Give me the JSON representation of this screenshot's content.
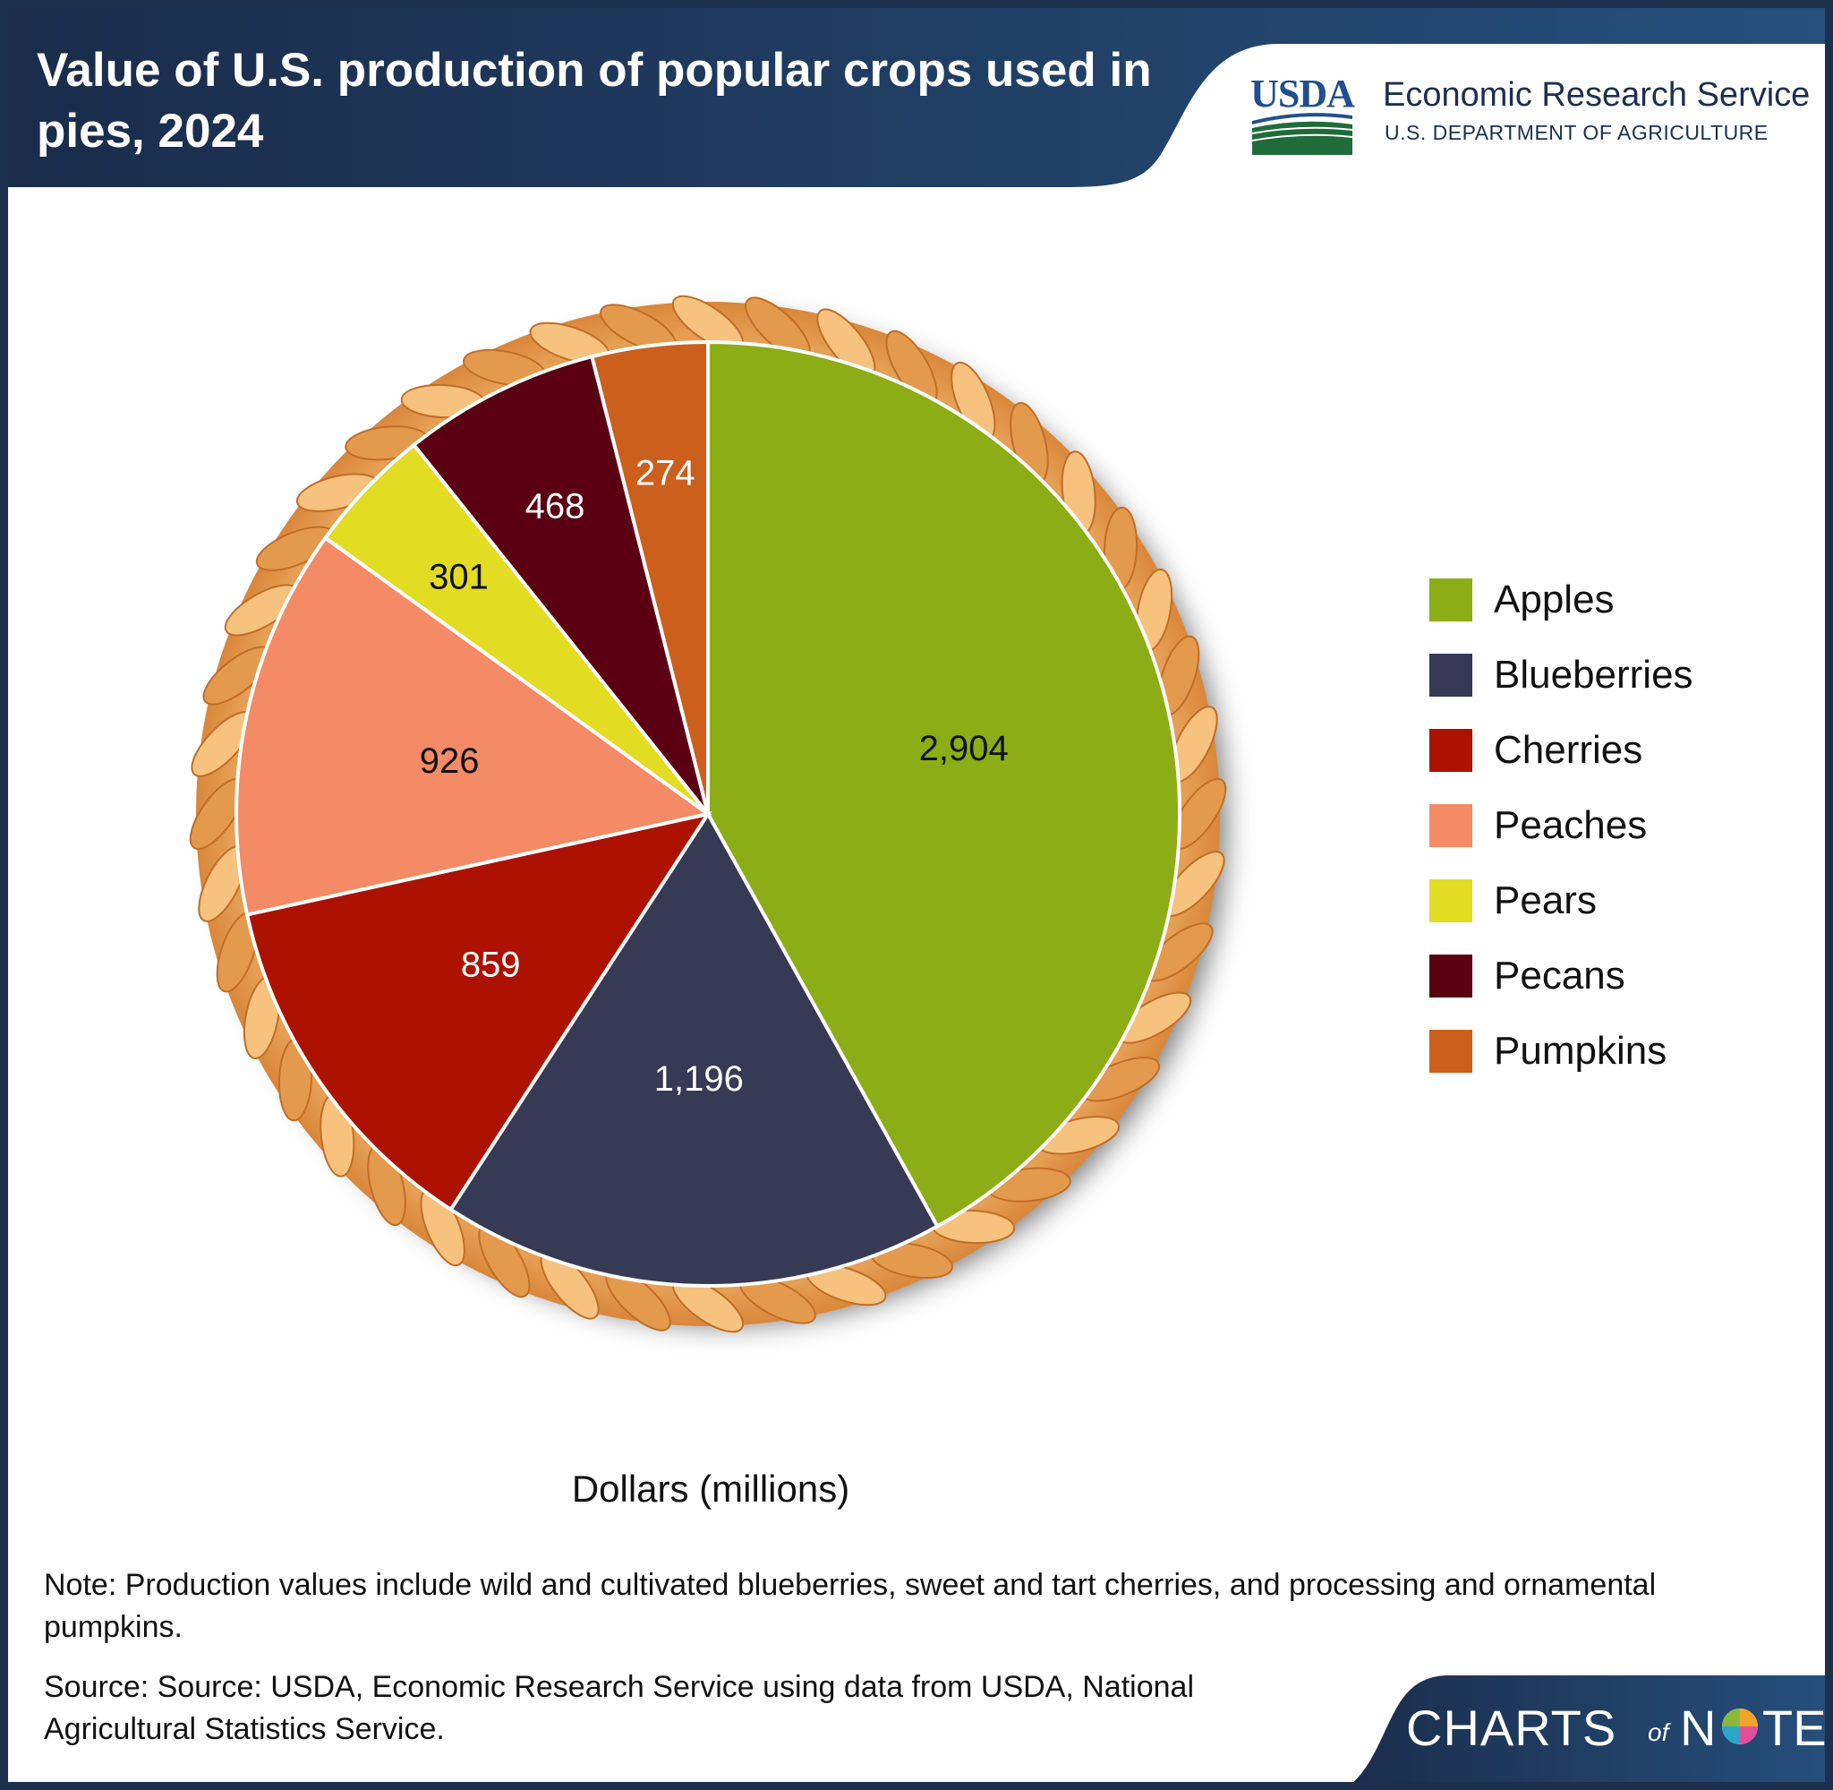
{
  "header": {
    "title": "Value of U.S. production of popular crops used in pies, 2024",
    "agency_logo": "USDA",
    "agency_name": "Economic Research Service",
    "department_name": "U.S. DEPARTMENT OF AGRICULTURE"
  },
  "chart_data": {
    "type": "pie",
    "title": "Value of U.S. production of popular crops used in pies, 2024",
    "units_label": "Dollars (millions)",
    "start_angle_deg": 0,
    "direction": "clockwise",
    "legend_position": "right",
    "categories": [
      "Apples",
      "Blueberries",
      "Cherries",
      "Peaches",
      "Pears",
      "Pecans",
      "Pumpkins"
    ],
    "values": [
      2904,
      1196,
      859,
      926,
      301,
      468,
      274
    ],
    "value_labels": [
      "2,904",
      "1,196",
      "859",
      "926",
      "301",
      "468",
      "274"
    ],
    "colors": [
      "#8cad15",
      "#363a55",
      "#ad1201",
      "#f48a66",
      "#e2dc22",
      "#5a0012",
      "#cc5f1c"
    ],
    "label_colors": [
      "#111111",
      "#ffffff",
      "#ffffff",
      "#111111",
      "#111111",
      "#ffffff",
      "#ffffff"
    ]
  },
  "legend": {
    "items": [
      {
        "label": "Apples",
        "color": "#8cad15"
      },
      {
        "label": "Blueberries",
        "color": "#363a55"
      },
      {
        "label": "Cherries",
        "color": "#ad1201"
      },
      {
        "label": "Peaches",
        "color": "#f48a66"
      },
      {
        "label": "Pears",
        "color": "#e2dc22"
      },
      {
        "label": "Pecans",
        "color": "#5a0012"
      },
      {
        "label": "Pumpkins",
        "color": "#cc5f1c"
      }
    ]
  },
  "notes": {
    "note": "Note: Production values include wild and cultivated blueberries, sweet and tart cherries, and processing and ornamental pumpkins.",
    "source": "Source: Source: USDA, Economic Research Service using data from USDA, National Agricultural Statistics Service."
  },
  "footer": {
    "brand_charts": "CHARTS",
    "brand_of": "of",
    "brand_n": "N",
    "brand_te": "TE"
  },
  "colors": {
    "navy": "#1c2f4d",
    "crust": "#e49a4c",
    "crust_highlight": "#f7c27e",
    "usda_green": "#1f6b3a",
    "usda_blue": "#214e8f"
  }
}
